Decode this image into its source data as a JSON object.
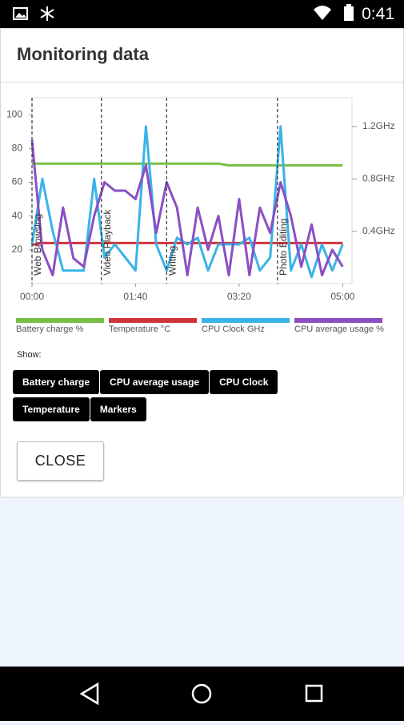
{
  "status_bar": {
    "time": "0:41"
  },
  "dialog": {
    "title": "Monitoring data",
    "show_label": "Show:",
    "buttons": [
      "Battery charge",
      "CPU average usage",
      "CPU Clock",
      "Temperature",
      "Markers"
    ],
    "close": "CLOSE"
  },
  "chart_data": {
    "type": "line",
    "x": [
      0,
      10,
      20,
      30,
      40,
      50,
      60,
      70,
      80,
      90,
      100,
      110,
      120,
      130,
      140,
      150,
      160,
      170,
      180,
      190,
      200,
      210,
      220,
      230,
      240,
      250,
      260,
      270,
      280,
      290,
      300
    ],
    "xlim": [
      0,
      309
    ],
    "xticks": [
      {
        "value": 0,
        "label": "00:00"
      },
      {
        "value": 100,
        "label": "01:40"
      },
      {
        "value": 200,
        "label": "03:20"
      },
      {
        "value": 300,
        "label": "05:00"
      }
    ],
    "ylim": [
      0,
      110
    ],
    "yticks": [
      20,
      40,
      60,
      80,
      100
    ],
    "y2lim": [
      0,
      1.42
    ],
    "y2ticks": [
      {
        "value": 0.4,
        "label": "0.4GHz"
      },
      {
        "value": 0.8,
        "label": "0.8GHz"
      },
      {
        "value": 1.2,
        "label": "1.2GHz"
      }
    ],
    "markers": [
      {
        "x": 0,
        "label": "Web Browsing"
      },
      {
        "x": 67,
        "label": "Video Playback"
      },
      {
        "x": 130,
        "label": "Writing"
      },
      {
        "x": 237,
        "label": "Photo Editing"
      }
    ],
    "series": [
      {
        "name": "Battery charge %",
        "color": "#77c043",
        "values": [
          71,
          71,
          71,
          71,
          71,
          71,
          71,
          71,
          71,
          71,
          71,
          71,
          71,
          71,
          71,
          71,
          71,
          71,
          71,
          70,
          70,
          70,
          70,
          70,
          70,
          70,
          70,
          70,
          70,
          70,
          70
        ]
      },
      {
        "name": "Temperature °C",
        "color": "#d0343b",
        "values": [
          23,
          24,
          24,
          24,
          24,
          24,
          24,
          24,
          24,
          24,
          24,
          24,
          24,
          24,
          24,
          24,
          24,
          24,
          24,
          24,
          24,
          24,
          24,
          24,
          24,
          24,
          24,
          24,
          24,
          24,
          24
        ]
      },
      {
        "name": "CPU Clock GHz",
        "color": "#3ab3e6",
        "axis": "y2",
        "values": [
          0.3,
          0.8,
          0.4,
          0.1,
          0.1,
          0.1,
          0.8,
          0.2,
          0.3,
          0.2,
          0.1,
          1.2,
          0.3,
          0.1,
          0.35,
          0.3,
          0.35,
          0.1,
          0.3,
          0.3,
          0.3,
          0.35,
          0.1,
          0.2,
          1.2,
          0.1,
          0.3,
          0.05,
          0.3,
          0.1,
          0.3
        ]
      },
      {
        "name": "CPU average usage %",
        "color": "#8b4fc2",
        "values": [
          85,
          20,
          5,
          45,
          15,
          10,
          40,
          60,
          55,
          55,
          50,
          70,
          30,
          60,
          45,
          5,
          45,
          20,
          40,
          5,
          50,
          5,
          45,
          30,
          60,
          40,
          10,
          35,
          5,
          20,
          10
        ]
      }
    ]
  }
}
